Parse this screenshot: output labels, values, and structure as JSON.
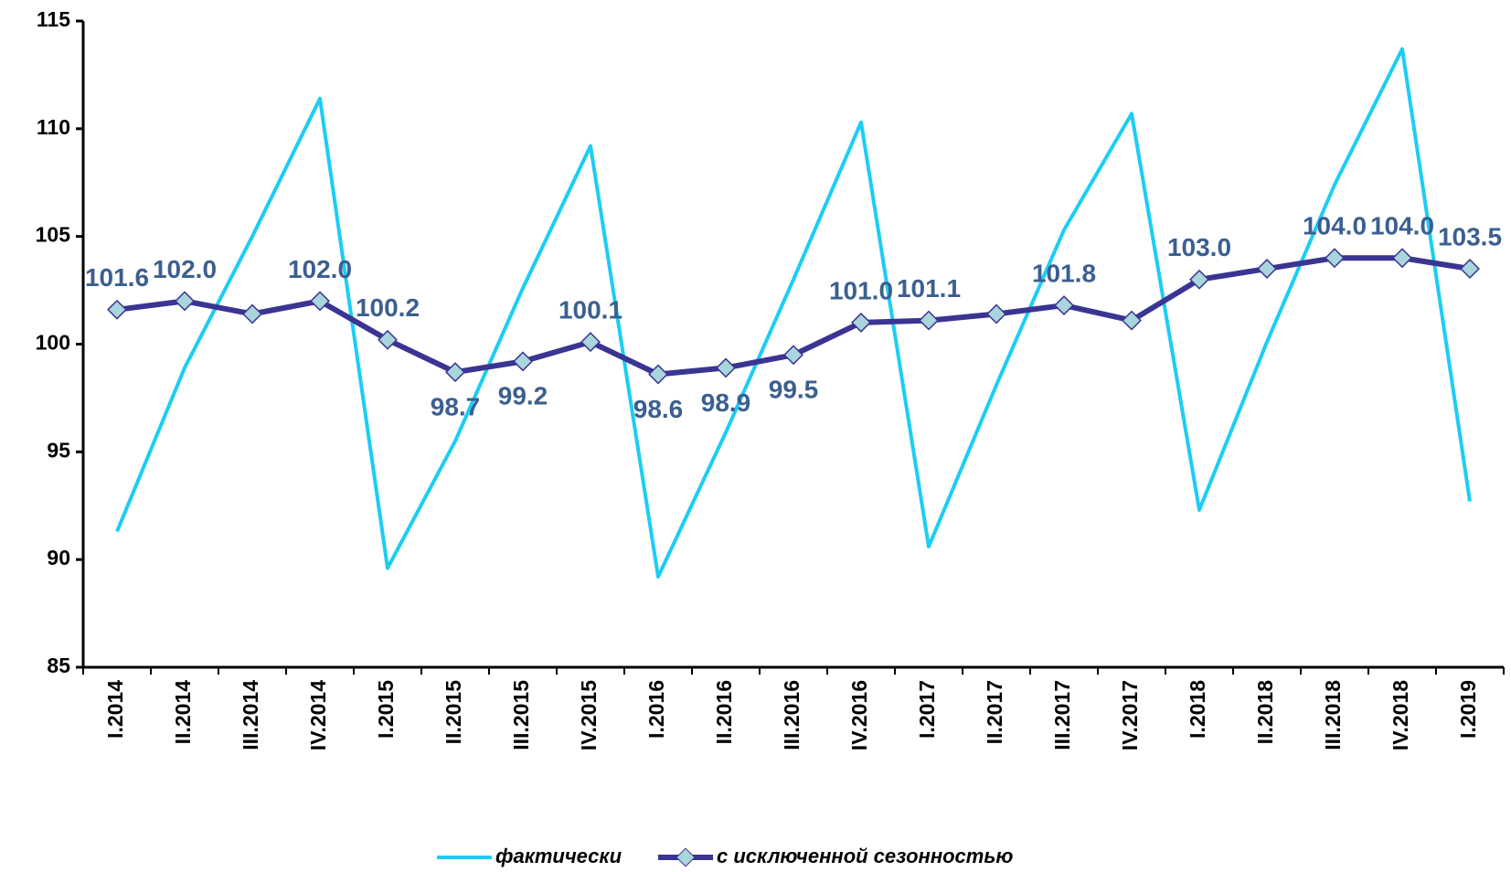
{
  "chart_data": {
    "type": "line",
    "categories": [
      "I.2014",
      "II.2014",
      "III.2014",
      "IV.2014",
      "I.2015",
      "II.2015",
      "III.2015",
      "IV.2015",
      "I.2016",
      "II.2016",
      "III.2016",
      "IV.2016",
      "I.2017",
      "II.2017",
      "III.2017",
      "IV.2017",
      "I.2018",
      "II.2018",
      "III.2018",
      "IV.2018",
      "I.2019"
    ],
    "series": [
      {
        "name": "фактически",
        "color": "#1ccdf5",
        "values": [
          91.3,
          98.9,
          105.0,
          111.4,
          89.6,
          95.5,
          102.6,
          109.2,
          89.2,
          95.9,
          103.0,
          110.3,
          90.6,
          98.1,
          105.3,
          110.7,
          92.3,
          100.1,
          107.4,
          113.7,
          92.7
        ]
      },
      {
        "name": "с исключенной сезонностью",
        "color": "#3a3592",
        "marker_color": "#a9d5dc",
        "label_color": "#3b5f8f",
        "values": [
          101.6,
          102.0,
          101.4,
          102.0,
          100.2,
          98.7,
          99.2,
          100.1,
          98.6,
          98.9,
          99.5,
          101.0,
          101.1,
          101.4,
          101.8,
          101.1,
          103.0,
          103.5,
          104.0,
          104.0,
          103.5
        ],
        "value_labels": [
          "101.6",
          "102.0",
          null,
          "102.0",
          "100.2",
          "98.7",
          "99.2",
          "100.1",
          "98.6",
          "98.9",
          "99.5",
          "101.0",
          "101.1",
          null,
          "101.8",
          null,
          "103.0",
          null,
          "104.0",
          "104.0",
          "103.5"
        ]
      }
    ],
    "ylim": [
      85,
      115
    ],
    "yticks": [
      85,
      90,
      95,
      100,
      105,
      110,
      115
    ],
    "legend": "bottom"
  }
}
